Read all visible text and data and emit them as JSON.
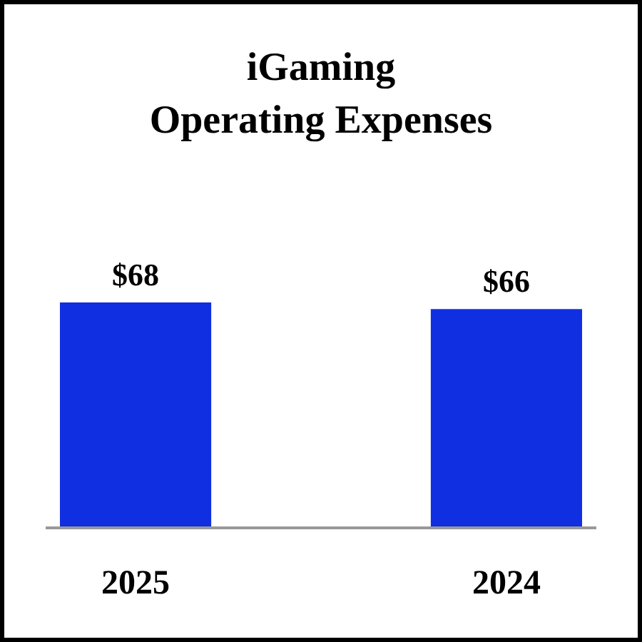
{
  "chart_data": {
    "type": "bar",
    "title": "iGaming\nOperating Expenses",
    "categories": [
      "2025",
      "2024"
    ],
    "values": [
      68,
      66
    ],
    "value_labels": [
      "$68",
      "$66"
    ],
    "color": "#0f2fe0"
  }
}
